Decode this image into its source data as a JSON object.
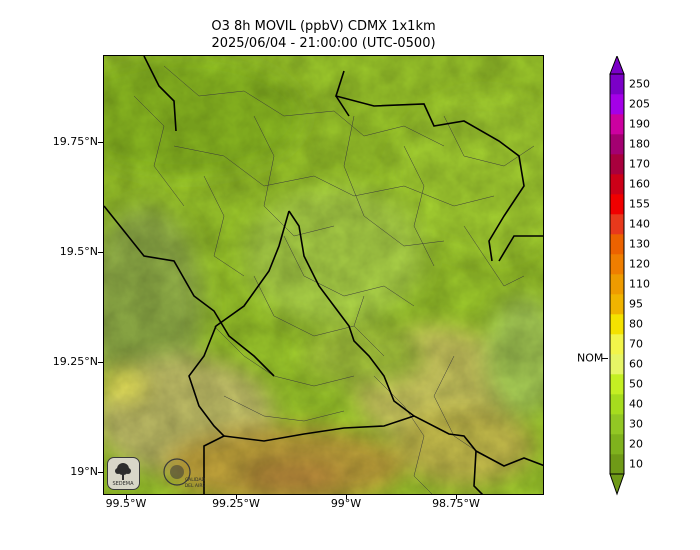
{
  "title": {
    "line1": "O3 8h MOVIL (ppbV) CDMX 1x1km",
    "line2": "2025/06/04 - 21:00:00 (UTC-0500)"
  },
  "axes": {
    "y_ticks": [
      "19.75°N",
      "19.5°N",
      "19.25°N",
      "19°N"
    ],
    "x_ticks": [
      "99.5°W",
      "99.25°W",
      "99°W",
      "98.75°W"
    ]
  },
  "colorbar": {
    "labels": [
      "10",
      "20",
      "30",
      "40",
      "50",
      "60",
      "70",
      "80",
      "95",
      "110",
      "120",
      "130",
      "140",
      "155",
      "160",
      "170",
      "180",
      "190",
      "205",
      "250"
    ],
    "colors": [
      "#6f9a17",
      "#7fb21d",
      "#92c724",
      "#a6dc1e",
      "#c4ef23",
      "#e6f566",
      "#f2f54a",
      "#f4e200",
      "#f0b400",
      "#ee9b00",
      "#ef7e00",
      "#ec6200",
      "#e8391c",
      "#f00000",
      "#cc0018",
      "#a8003d",
      "#a30071",
      "#cc00a0",
      "#a400e8",
      "#7b00c8"
    ],
    "reference_label": "NOM"
  },
  "logos": {
    "left": "SEDEMA",
    "right": "CALIDAD DEL AIRE"
  }
}
